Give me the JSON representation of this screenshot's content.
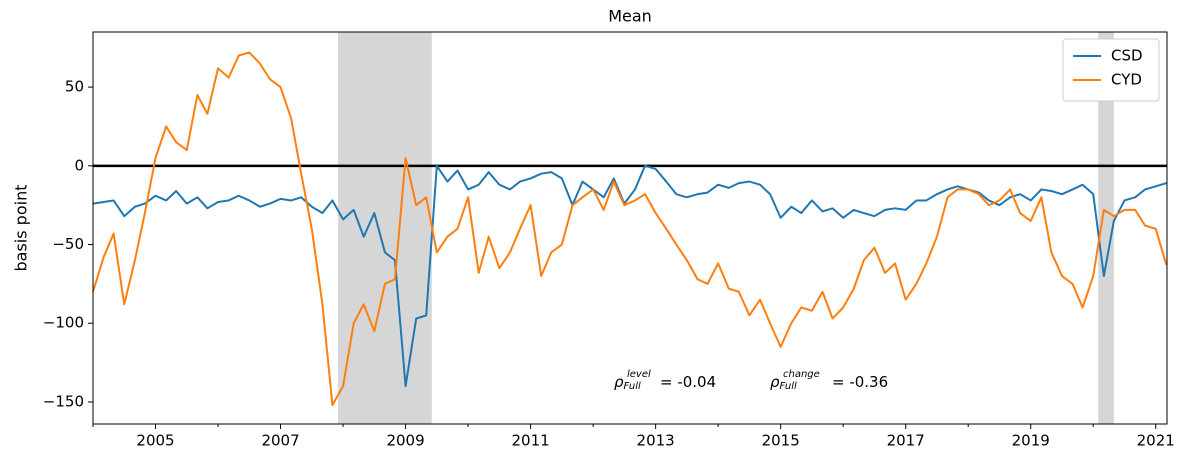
{
  "chart_data": {
    "type": "line",
    "title": "Mean",
    "y_label": "basis point",
    "xlim": [
      2004,
      2021.18
    ],
    "xticks": [
      2005,
      2007,
      2009,
      2011,
      2013,
      2015,
      2017,
      2019,
      2021
    ],
    "xminorticks": [
      2004,
      2006,
      2008,
      2010,
      2012,
      2014,
      2016,
      2018,
      2020
    ],
    "ylim": [
      -164,
      85
    ],
    "yticks": [
      {
        "value": 50,
        "label": "50"
      },
      {
        "value": 0,
        "label": "0"
      },
      {
        "value": -50,
        "label": "−50"
      },
      {
        "value": -100,
        "label": "−100"
      },
      {
        "value": -150,
        "label": "−150"
      }
    ],
    "hline": 0,
    "shaded_regions": [
      [
        2007.92,
        2009.42
      ],
      [
        2020.08,
        2020.33
      ]
    ],
    "shade_color": "#d6d6d6",
    "legend_position": "upper right",
    "x": [
      2004,
      2004.17,
      2004.33,
      2004.5,
      2004.67,
      2004.83,
      2005,
      2005.17,
      2005.33,
      2005.5,
      2005.67,
      2005.83,
      2006,
      2006.17,
      2006.33,
      2006.5,
      2006.67,
      2006.83,
      2007,
      2007.17,
      2007.33,
      2007.5,
      2007.67,
      2007.83,
      2008,
      2008.17,
      2008.33,
      2008.5,
      2008.67,
      2008.83,
      2009,
      2009.17,
      2009.33,
      2009.5,
      2009.67,
      2009.83,
      2010,
      2010.17,
      2010.33,
      2010.5,
      2010.67,
      2010.83,
      2011,
      2011.17,
      2011.33,
      2011.5,
      2011.67,
      2011.83,
      2012,
      2012.17,
      2012.33,
      2012.5,
      2012.67,
      2012.83,
      2013,
      2013.17,
      2013.33,
      2013.5,
      2013.67,
      2013.83,
      2014,
      2014.17,
      2014.33,
      2014.5,
      2014.67,
      2014.83,
      2015,
      2015.17,
      2015.33,
      2015.5,
      2015.67,
      2015.83,
      2016,
      2016.17,
      2016.33,
      2016.5,
      2016.67,
      2016.83,
      2017,
      2017.17,
      2017.33,
      2017.5,
      2017.67,
      2017.83,
      2018,
      2018.17,
      2018.33,
      2018.5,
      2018.67,
      2018.83,
      2019,
      2019.17,
      2019.33,
      2019.5,
      2019.67,
      2019.83,
      2020,
      2020.17,
      2020.33,
      2020.5,
      2020.67,
      2020.83,
      2021,
      2021.17
    ],
    "series": [
      {
        "name": "CSD",
        "color": "#1f77b4",
        "values": [
          -24,
          -23,
          -22,
          -32,
          -26,
          -24,
          -19,
          -22,
          -16,
          -24,
          -20,
          -27,
          -23,
          -22,
          -19,
          -22,
          -26,
          -24,
          -21,
          -22,
          -20,
          -26,
          -30,
          -22,
          -34,
          -28,
          -45,
          -30,
          -55,
          -60,
          -140,
          -97,
          -95,
          0,
          -10,
          -3,
          -15,
          -12,
          -4,
          -12,
          -15,
          -10,
          -8,
          -5,
          -4,
          -8,
          -25,
          -10,
          -15,
          -20,
          -8,
          -24,
          -15,
          0,
          -2,
          -10,
          -18,
          -20,
          -18,
          -17,
          -12,
          -14,
          -11,
          -10,
          -12,
          -18,
          -33,
          -26,
          -30,
          -22,
          -29,
          -27,
          -33,
          -28,
          -30,
          -32,
          -28,
          -27,
          -28,
          -22,
          -22,
          -18,
          -15,
          -13,
          -15,
          -17,
          -22,
          -25,
          -20,
          -18,
          -22,
          -15,
          -16,
          -18,
          -15,
          -12,
          -18,
          -70,
          -35,
          -22,
          -20,
          -15,
          -13,
          -11
        ]
      },
      {
        "name": "CYD",
        "color": "#ff7f0e",
        "values": [
          -80,
          -58,
          -43,
          -88,
          -60,
          -30,
          5,
          25,
          15,
          10,
          45,
          33,
          62,
          56,
          70,
          72,
          65,
          55,
          50,
          30,
          -5,
          -40,
          -88,
          -152,
          -140,
          -100,
          -88,
          -105,
          -75,
          -72,
          5,
          -25,
          -20,
          -55,
          -45,
          -40,
          -20,
          -68,
          -45,
          -65,
          -55,
          -40,
          -25,
          -70,
          -55,
          -50,
          -25,
          -20,
          -15,
          -28,
          -10,
          -25,
          -22,
          -18,
          -30,
          -40,
          -50,
          -60,
          -72,
          -75,
          -62,
          -78,
          -80,
          -95,
          -85,
          -100,
          -115,
          -100,
          -90,
          -92,
          -80,
          -97,
          -90,
          -78,
          -60,
          -52,
          -68,
          -62,
          -85,
          -75,
          -62,
          -45,
          -20,
          -15,
          -15,
          -18,
          -25,
          -22,
          -15,
          -30,
          -35,
          -20,
          -55,
          -70,
          -75,
          -90,
          -70,
          -28,
          -32,
          -28,
          -28,
          -38,
          -40,
          -63
        ]
      }
    ],
    "annotations": [
      {
        "symbol": "ρ",
        "sub": "Full",
        "sup": "level",
        "text": "= -0.04"
      },
      {
        "symbol": "ρ",
        "sub": "Full",
        "sup": "change",
        "text": "= -0.36"
      }
    ]
  }
}
